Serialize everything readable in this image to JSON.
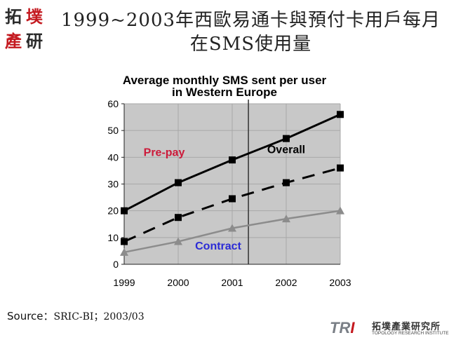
{
  "logo": {
    "chars": [
      "拓",
      "墣",
      "產",
      "研"
    ]
  },
  "slide_title": {
    "line1": "1999~2003年西歐易通卡與預付卡用戶每月",
    "line2": "在SMS使用量"
  },
  "chart_data": {
    "type": "line",
    "title_line1": "Average monthly SMS sent per user",
    "title_line2": "in Western Europe",
    "categories": [
      "1999",
      "2000",
      "2001",
      "2002",
      "2003"
    ],
    "ylim": [
      0,
      60
    ],
    "yticks": [
      0,
      10,
      20,
      30,
      40,
      50,
      60
    ],
    "grid": true,
    "divider_after": "2001",
    "series": [
      {
        "name": "Pre-pay",
        "values": [
          20,
          30.5,
          39,
          47,
          56
        ],
        "color": "#000000",
        "marker": "square",
        "dash": "solid",
        "label_color": "#cc1a3a"
      },
      {
        "name": "Overall",
        "values": [
          8.5,
          17.5,
          24.5,
          30.5,
          36
        ],
        "color": "#000000",
        "marker": "square",
        "dash": "dashed",
        "label_color": "#000000"
      },
      {
        "name": "Contract",
        "values": [
          4.5,
          8.5,
          13.5,
          17,
          20
        ],
        "color": "#8c8c8c",
        "marker": "triangle",
        "dash": "solid",
        "label_color": "#2b2bd6"
      }
    ],
    "colors": {
      "plot_bg": "#c8c8c8",
      "grid": "#a8a8a8"
    }
  },
  "source": {
    "lead": "Source：",
    "text": "SRIC-BI；2003/03"
  },
  "footer_logo": {
    "brand_prefix": "TR",
    "brand_suffix": "I",
    "name_cn": "拓墣產業研究所",
    "name_en": "TOPOLOGY RESEARCH INSTITUTE"
  }
}
